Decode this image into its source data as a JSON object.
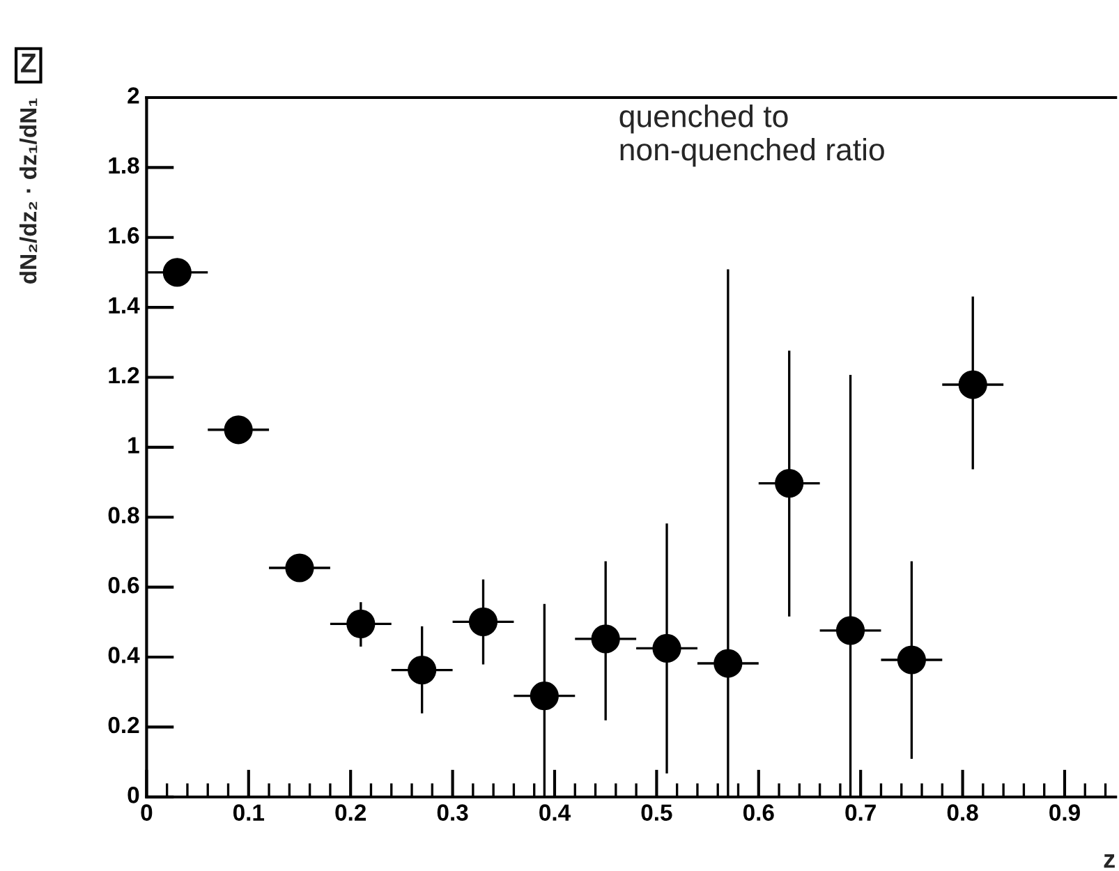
{
  "chart_data": {
    "type": "scatter",
    "title": "Z",
    "xlabel": "z",
    "ylabel": "dN₂/dz₂ · dz₁/dN₁",
    "annotations": [
      "quenched to\nnon-quenched ratio"
    ],
    "x": [
      0.03,
      0.09,
      0.15,
      0.21,
      0.27,
      0.33,
      0.39,
      0.45,
      0.51,
      0.57,
      0.63,
      0.69,
      0.75,
      0.81
    ],
    "series": [
      {
        "color": "#000000",
        "values": [
          1.5,
          1.05,
          0.655,
          0.495,
          0.363,
          0.501,
          0.289,
          0.452,
          0.425,
          0.382,
          0.897,
          0.476,
          0.392,
          1.179
        ],
        "errors": [
          null,
          null,
          null,
          [
            0.43,
            0.557
          ],
          [
            0.239,
            0.488
          ],
          [
            0.379,
            0.622
          ],
          [
            0,
            0.552
          ],
          [
            0.219,
            0.674
          ],
          [
            0.067,
            0.782
          ],
          [
            0,
            1.509
          ],
          [
            0.516,
            1.276
          ],
          [
            0,
            1.207
          ],
          [
            0.109,
            0.674
          ],
          [
            0.937,
            1.431
          ]
        ],
        "xerrors": [
          0.03,
          0.03,
          0.03,
          0.03,
          0.03,
          0.03,
          0.03,
          0.03,
          0.03,
          0.03,
          0.03,
          0.03,
          0.03,
          0.03
        ]
      }
    ],
    "marker": "circle",
    "grid": false,
    "legend": false,
    "xlim": [
      0,
      0.95
    ],
    "ylim": [
      0,
      2
    ],
    "xticks": [
      0,
      0.1,
      0.2,
      0.3,
      0.4,
      0.5,
      0.6,
      0.7,
      0.8,
      0.9
    ],
    "yticks": [
      0,
      0.2,
      0.4,
      0.6,
      0.8,
      1,
      1.2,
      1.4,
      1.6,
      1.8,
      2
    ]
  }
}
